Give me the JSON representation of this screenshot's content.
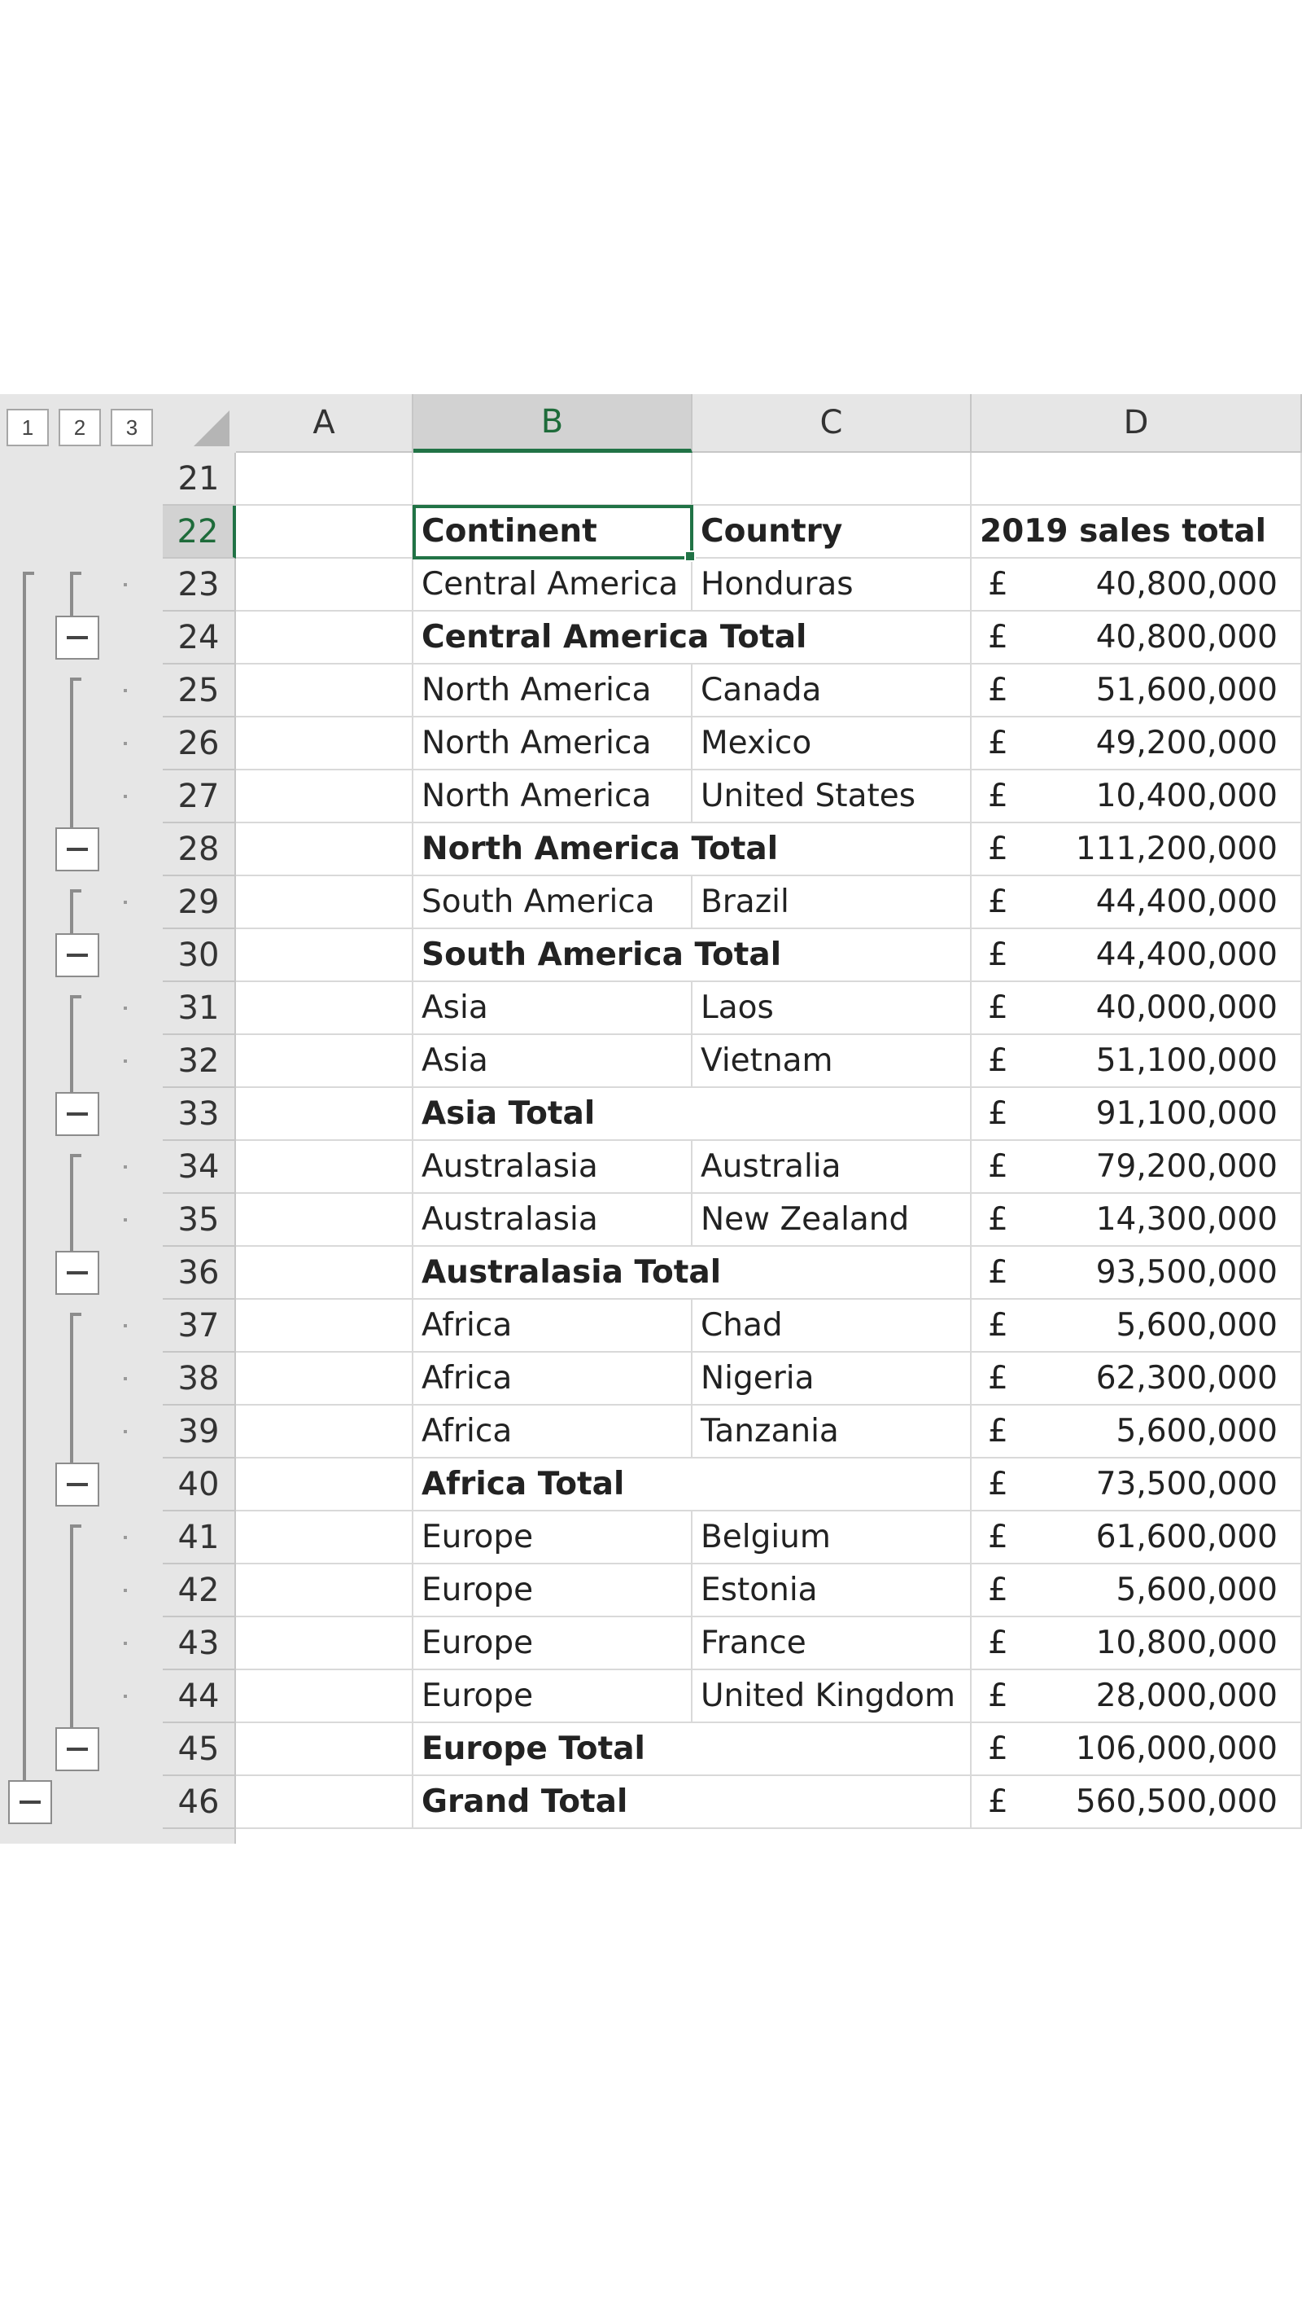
{
  "outline_levels": [
    "1",
    "2",
    "3"
  ],
  "columns": [
    "A",
    "B",
    "C",
    "D"
  ],
  "selected_column": "B",
  "active_cell": "B22",
  "rows": [
    {
      "num": "21",
      "b": "",
      "c": "",
      "cur": "",
      "amt": "",
      "bold": false,
      "kind": "blank"
    },
    {
      "num": "22",
      "b": "Continent",
      "c": "Country",
      "cur": "",
      "amt": "",
      "d_header": "2019 sales total",
      "bold": true,
      "kind": "header"
    },
    {
      "num": "23",
      "b": "Central America",
      "c": "Honduras",
      "cur": "£",
      "amt": "40,800,000",
      "bold": false,
      "kind": "detail"
    },
    {
      "num": "24",
      "b": "Central America Total",
      "c": "",
      "cur": "£",
      "amt": "40,800,000",
      "bold": true,
      "kind": "subtotal"
    },
    {
      "num": "25",
      "b": "North America",
      "c": "Canada",
      "cur": "£",
      "amt": "51,600,000",
      "bold": false,
      "kind": "detail"
    },
    {
      "num": "26",
      "b": "North America",
      "c": "Mexico",
      "cur": "£",
      "amt": "49,200,000",
      "bold": false,
      "kind": "detail"
    },
    {
      "num": "27",
      "b": "North America",
      "c": "United States",
      "cur": "£",
      "amt": "10,400,000",
      "bold": false,
      "kind": "detail"
    },
    {
      "num": "28",
      "b": "North America Total",
      "c": "",
      "cur": "£",
      "amt": "111,200,000",
      "bold": true,
      "kind": "subtotal"
    },
    {
      "num": "29",
      "b": "South America",
      "c": "Brazil",
      "cur": "£",
      "amt": "44,400,000",
      "bold": false,
      "kind": "detail"
    },
    {
      "num": "30",
      "b": "South America Total",
      "c": "",
      "cur": "£",
      "amt": "44,400,000",
      "bold": true,
      "kind": "subtotal"
    },
    {
      "num": "31",
      "b": "Asia",
      "c": "Laos",
      "cur": "£",
      "amt": "40,000,000",
      "bold": false,
      "kind": "detail"
    },
    {
      "num": "32",
      "b": "Asia",
      "c": "Vietnam",
      "cur": "£",
      "amt": "51,100,000",
      "bold": false,
      "kind": "detail"
    },
    {
      "num": "33",
      "b": "Asia Total",
      "c": "",
      "cur": "£",
      "amt": "91,100,000",
      "bold": true,
      "kind": "subtotal"
    },
    {
      "num": "34",
      "b": "Australasia",
      "c": "Australia",
      "cur": "£",
      "amt": "79,200,000",
      "bold": false,
      "kind": "detail"
    },
    {
      "num": "35",
      "b": "Australasia",
      "c": "New Zealand",
      "cur": "£",
      "amt": "14,300,000",
      "bold": false,
      "kind": "detail"
    },
    {
      "num": "36",
      "b": "Australasia Total",
      "c": "",
      "cur": "£",
      "amt": "93,500,000",
      "bold": true,
      "kind": "subtotal"
    },
    {
      "num": "37",
      "b": "Africa",
      "c": "Chad",
      "cur": "£",
      "amt": "5,600,000",
      "bold": false,
      "kind": "detail"
    },
    {
      "num": "38",
      "b": "Africa",
      "c": "Nigeria",
      "cur": "£",
      "amt": "62,300,000",
      "bold": false,
      "kind": "detail"
    },
    {
      "num": "39",
      "b": "Africa",
      "c": "Tanzania",
      "cur": "£",
      "amt": "5,600,000",
      "bold": false,
      "kind": "detail"
    },
    {
      "num": "40",
      "b": "Africa Total",
      "c": "",
      "cur": "£",
      "amt": "73,500,000",
      "bold": true,
      "kind": "subtotal"
    },
    {
      "num": "41",
      "b": "Europe",
      "c": "Belgium",
      "cur": "£",
      "amt": "61,600,000",
      "bold": false,
      "kind": "detail"
    },
    {
      "num": "42",
      "b": "Europe",
      "c": "Estonia",
      "cur": "£",
      "amt": "5,600,000",
      "bold": false,
      "kind": "detail"
    },
    {
      "num": "43",
      "b": "Europe",
      "c": "France",
      "cur": "£",
      "amt": "10,800,000",
      "bold": false,
      "kind": "detail"
    },
    {
      "num": "44",
      "b": "Europe",
      "c": "United Kingdom",
      "cur": "£",
      "amt": "28,000,000",
      "bold": false,
      "kind": "detail"
    },
    {
      "num": "45",
      "b": "Europe Total",
      "c": "",
      "cur": "£",
      "amt": "106,000,000",
      "bold": true,
      "kind": "subtotal"
    },
    {
      "num": "46",
      "b": "Grand Total",
      "c": "",
      "cur": "£",
      "amt": "560,500,000",
      "bold": true,
      "kind": "grandtotal"
    }
  ],
  "outline_groups": [
    {
      "start": "23",
      "end": "23",
      "collapse_row": "24"
    },
    {
      "start": "25",
      "end": "27",
      "collapse_row": "28"
    },
    {
      "start": "29",
      "end": "29",
      "collapse_row": "30"
    },
    {
      "start": "31",
      "end": "32",
      "collapse_row": "33"
    },
    {
      "start": "34",
      "end": "35",
      "collapse_row": "36"
    },
    {
      "start": "37",
      "end": "39",
      "collapse_row": "40"
    },
    {
      "start": "41",
      "end": "44",
      "collapse_row": "45"
    }
  ],
  "colors": {
    "selection": "#217346",
    "header_bg": "#e6e6e6",
    "gridline": "#d9d9d9"
  }
}
